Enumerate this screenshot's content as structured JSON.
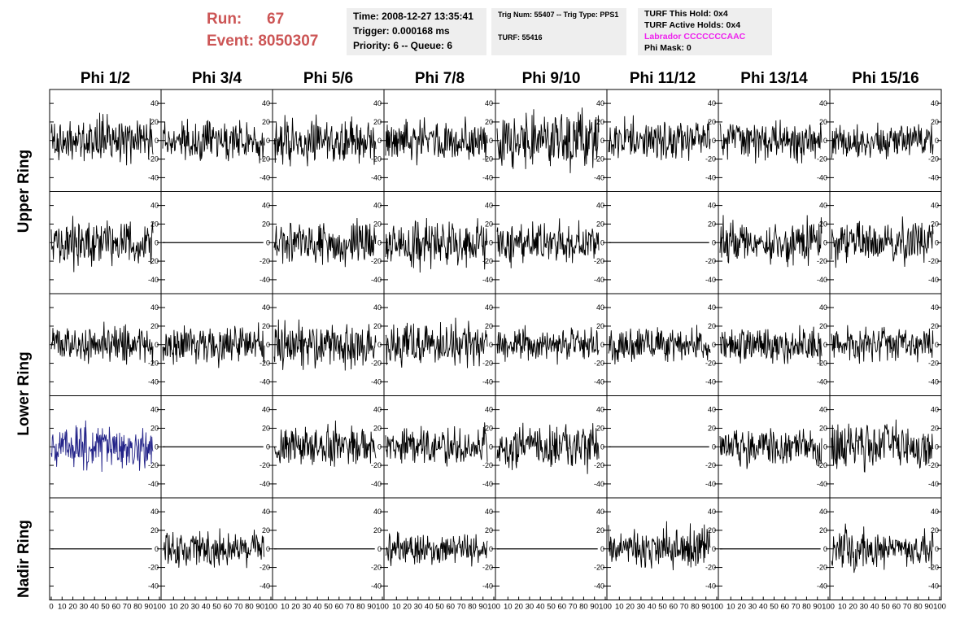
{
  "header": {
    "run_label": "Run:",
    "run_value": "67",
    "event_label": "Event:",
    "event_value": "8050307",
    "time_line": "Time: 2008-12-27 13:35:41",
    "trigger_line": "Trigger: 0.000168 ms",
    "priority_line": "Priority: 6 -- Queue: 6",
    "trig_line": "Trig Num: 55407 -- Trig Type: PPS1",
    "turf_line": "TURF: 55416",
    "turf_hold_line": "TURF This Hold: 0x4",
    "turf_active_line": "TURF Active Holds: 0x4",
    "labrador_line": "Labrador CCCCCCCAAC",
    "phi_mask_line": "Phi Mask: 0"
  },
  "colors": {
    "run_text": "#cc5555",
    "labrador_text": "#ee22ee",
    "info_box_bg": "#eeeeee",
    "trace": "#000000",
    "highlight_trace": "#222288"
  },
  "columns": [
    "Phi 1/2",
    "Phi 3/4",
    "Phi 5/6",
    "Phi 7/8",
    "Phi 9/10",
    "Phi 11/12",
    "Phi 13/14",
    "Phi 15/16"
  ],
  "ring_labels": [
    "Upper Ring",
    "Lower Ring",
    "Nadir Ring"
  ],
  "chart_data": {
    "type": "line",
    "grid": "off",
    "x_range": [
      0,
      100
    ],
    "x_tick_labels": [
      "0",
      "10",
      "20",
      "30",
      "40",
      "50",
      "60",
      "70",
      "80",
      "90",
      "100"
    ],
    "y_range": [
      -55,
      55
    ],
    "y_tick_labels": [
      "40",
      "20",
      "0",
      "-20",
      "-40"
    ],
    "rows": [
      {
        "amp": [
          26,
          24,
          26,
          24,
          34,
          24,
          22,
          20
        ],
        "flat": [
          false,
          false,
          false,
          false,
          false,
          false,
          false,
          false
        ],
        "highlight": [
          false,
          false,
          false,
          false,
          false,
          false,
          false,
          false
        ]
      },
      {
        "amp": [
          28,
          0,
          25,
          28,
          24,
          0,
          26,
          26
        ],
        "flat": [
          false,
          true,
          false,
          false,
          false,
          true,
          false,
          false
        ],
        "highlight": [
          false,
          false,
          false,
          false,
          false,
          false,
          false,
          false
        ]
      },
      {
        "amp": [
          24,
          22,
          28,
          26,
          22,
          22,
          22,
          20
        ],
        "flat": [
          false,
          false,
          false,
          false,
          false,
          false,
          false,
          false
        ],
        "highlight": [
          false,
          false,
          false,
          false,
          false,
          false,
          false,
          false
        ]
      },
      {
        "amp": [
          26,
          0,
          24,
          22,
          26,
          0,
          22,
          28
        ],
        "flat": [
          false,
          true,
          false,
          false,
          false,
          true,
          false,
          false
        ],
        "highlight": [
          true,
          false,
          false,
          false,
          false,
          false,
          false,
          false
        ]
      },
      {
        "amp": [
          0,
          22,
          0,
          18,
          0,
          26,
          0,
          24
        ],
        "flat": [
          true,
          false,
          true,
          false,
          true,
          false,
          true,
          false
        ],
        "highlight": [
          false,
          false,
          false,
          false,
          false,
          false,
          false,
          false
        ]
      }
    ]
  }
}
